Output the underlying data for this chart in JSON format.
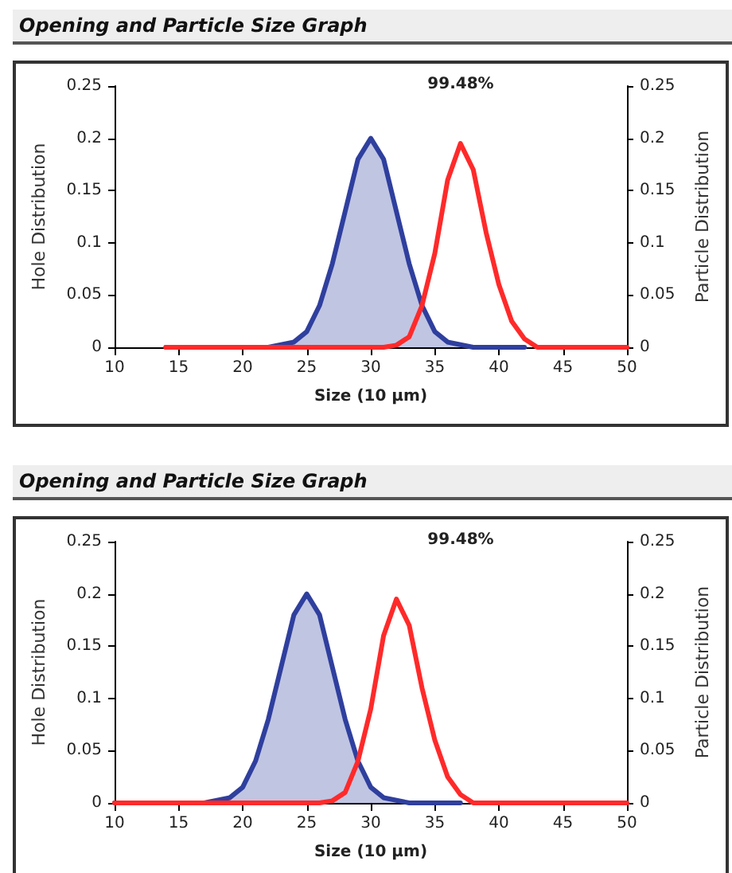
{
  "chart_data": [
    {
      "type": "area",
      "title": "Opening and Particle Size Graph",
      "xlabel": "Size (10 µm)",
      "ylabel": "Hole Distribution",
      "y2label": "Particle Distribution",
      "annotations": [
        "99.48%"
      ],
      "xlim": [
        10,
        50
      ],
      "xticks": [
        10,
        15,
        20,
        25,
        30,
        35,
        40,
        45,
        50
      ],
      "ylim": [
        0,
        0.25
      ],
      "yticks": [
        0,
        0.05,
        0.1,
        0.15,
        0.2,
        0.25
      ],
      "y2lim": [
        0,
        0.25
      ],
      "y2ticks": [
        0,
        0.05,
        0.1,
        0.15,
        0.2,
        0.25
      ],
      "grid": false,
      "marker": "none",
      "line_style": "solid",
      "series": [
        {
          "color": "#2f3f9e",
          "x": [
            14,
            22,
            24,
            25,
            26,
            27,
            28,
            29,
            30,
            31,
            32,
            33,
            34,
            35,
            36,
            38,
            42
          ],
          "values": [
            0,
            0,
            0.005,
            0.015,
            0.04,
            0.08,
            0.13,
            0.18,
            0.2,
            0.18,
            0.13,
            0.08,
            0.04,
            0.015,
            0.005,
            0,
            0
          ]
        },
        {
          "type": "line",
          "axis": "y2",
          "color": "#ff2a2a",
          "x": [
            14,
            31,
            32,
            33,
            34,
            35,
            36,
            37,
            38,
            39,
            40,
            41,
            42,
            43,
            50
          ],
          "values": [
            0,
            0,
            0.002,
            0.01,
            0.04,
            0.09,
            0.16,
            0.195,
            0.17,
            0.11,
            0.06,
            0.025,
            0.008,
            0,
            0
          ]
        }
      ]
    },
    {
      "type": "area",
      "title": "Opening and Particle Size Graph",
      "xlabel": "Size (10 µm)",
      "ylabel": "Hole Distribution",
      "y2label": "Particle Distribution",
      "annotations": [
        "99.48%"
      ],
      "xlim": [
        10,
        50
      ],
      "xticks": [
        10,
        15,
        20,
        25,
        30,
        35,
        40,
        45,
        50
      ],
      "ylim": [
        0,
        0.25
      ],
      "yticks": [
        0,
        0.05,
        0.1,
        0.15,
        0.2,
        0.25
      ],
      "y2lim": [
        0,
        0.25
      ],
      "y2ticks": [
        0,
        0.05,
        0.1,
        0.15,
        0.2,
        0.25
      ],
      "grid": false,
      "marker": "none",
      "line_style": "solid",
      "series": [
        {
          "color": "#2f3f9e",
          "x": [
            10,
            17,
            19,
            20,
            21,
            22,
            23,
            24,
            25,
            26,
            27,
            28,
            29,
            30,
            31,
            33,
            37
          ],
          "values": [
            0,
            0,
            0.005,
            0.015,
            0.04,
            0.08,
            0.13,
            0.18,
            0.2,
            0.18,
            0.13,
            0.08,
            0.04,
            0.015,
            0.005,
            0,
            0
          ]
        },
        {
          "type": "line",
          "axis": "y2",
          "color": "#ff2a2a",
          "x": [
            10,
            26,
            27,
            28,
            29,
            30,
            31,
            32,
            33,
            34,
            35,
            36,
            37,
            38,
            50
          ],
          "values": [
            0,
            0,
            0.002,
            0.01,
            0.04,
            0.09,
            0.16,
            0.195,
            0.17,
            0.11,
            0.06,
            0.025,
            0.008,
            0,
            0
          ]
        }
      ]
    }
  ]
}
